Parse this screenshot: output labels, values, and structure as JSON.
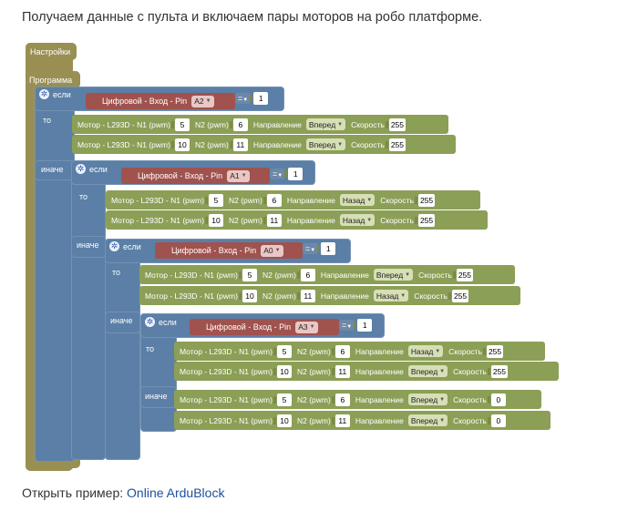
{
  "intro": "Получаем данные с пульта и включаем пары моторов на робо платформе.",
  "setup_label": "Настройки",
  "program_label": "Программа",
  "keywords": {
    "if": "если",
    "then": "то",
    "else": "иначе"
  },
  "conditions": [
    {
      "block": "Цифровой - Вход - Pin",
      "pin": "A2",
      "op": "=",
      "value": "1"
    },
    {
      "block": "Цифровой - Вход - Pin",
      "pin": "A1",
      "op": "=",
      "value": "1"
    },
    {
      "block": "Цифровой - Вход - Pin",
      "pin": "A0",
      "op": "=",
      "value": "1"
    },
    {
      "block": "Цифровой - Вход - Pin",
      "pin": "A3",
      "op": "=",
      "value": "1"
    }
  ],
  "motor_text": {
    "label": "Мотор - L293D - N1 (pwm)",
    "n2": "N2 (pwm)",
    "dir": "Направление",
    "speed": "Скорость"
  },
  "motors": [
    {
      "n1": "5",
      "n2": "6",
      "dir": "Вперед",
      "speed": "255"
    },
    {
      "n1": "10",
      "n2": "11",
      "dir": "Вперед",
      "speed": "255"
    },
    {
      "n1": "5",
      "n2": "6",
      "dir": "Назад",
      "speed": "255"
    },
    {
      "n1": "10",
      "n2": "11",
      "dir": "Назад",
      "speed": "255"
    },
    {
      "n1": "5",
      "n2": "6",
      "dir": "Вперед",
      "speed": "255"
    },
    {
      "n1": "10",
      "n2": "11",
      "dir": "Назад",
      "speed": "255"
    },
    {
      "n1": "5",
      "n2": "6",
      "dir": "Назад",
      "speed": "255"
    },
    {
      "n1": "10",
      "n2": "11",
      "dir": "Вперед",
      "speed": "255"
    },
    {
      "n1": "5",
      "n2": "6",
      "dir": "Вперед",
      "speed": "0"
    },
    {
      "n1": "10",
      "n2": "11",
      "dir": "Вперед",
      "speed": "0"
    }
  ],
  "footer": {
    "prefix": "Открыть пример: ",
    "link": "Online ArduBlock"
  },
  "colors": {
    "setup": "#9a8f53",
    "if_block": "#5b7fa6",
    "pin_block": "#a0524e",
    "motor_block": "#8c9f56",
    "link": "#1e4f9c"
  }
}
